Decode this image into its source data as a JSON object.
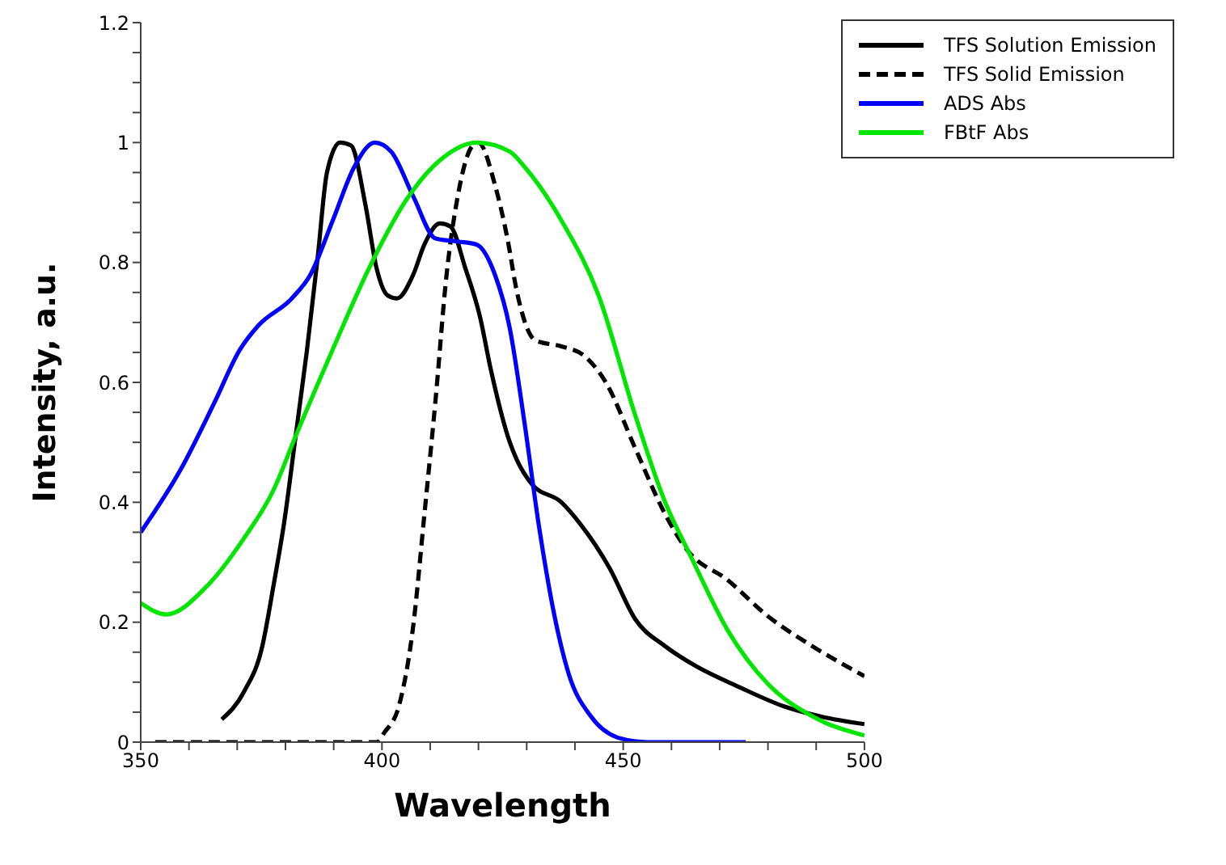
{
  "chart_data": {
    "type": "line",
    "xlabel": "Wavelength",
    "ylabel": "Intensity, a.u.",
    "xlim": [
      350,
      500
    ],
    "ylim": [
      0,
      1.2
    ],
    "xticks": [
      350,
      {
        "value": 360,
        "label": null
      },
      {
        "value": 370,
        "label": null
      },
      {
        "value": 380,
        "label": null
      },
      {
        "value": 390,
        "label": null
      },
      400,
      {
        "value": 410,
        "label": null
      },
      {
        "value": 420,
        "label": null
      },
      {
        "value": 430,
        "label": null
      },
      {
        "value": 440,
        "label": null
      },
      450,
      {
        "value": 460,
        "label": null
      },
      {
        "value": 470,
        "label": null
      },
      {
        "value": 480,
        "label": null
      },
      {
        "value": 490,
        "label": null
      },
      500
    ],
    "yticks": [
      0,
      {
        "value": 0.05,
        "label": null
      },
      {
        "value": 0.1,
        "label": null
      },
      {
        "value": 0.15,
        "label": null
      },
      0.2,
      {
        "value": 0.25,
        "label": null
      },
      {
        "value": 0.3,
        "label": null
      },
      {
        "value": 0.35,
        "label": null
      },
      0.4,
      {
        "value": 0.45,
        "label": null
      },
      {
        "value": 0.5,
        "label": null
      },
      {
        "value": 0.55,
        "label": null
      },
      0.6,
      {
        "value": 0.65,
        "label": null
      },
      {
        "value": 0.7,
        "label": null
      },
      {
        "value": 0.75,
        "label": null
      },
      0.8,
      {
        "value": 0.85,
        "label": null
      },
      {
        "value": 0.9,
        "label": null
      },
      {
        "value": 0.95,
        "label": null
      },
      1,
      {
        "value": 1.05,
        "label": null
      },
      {
        "value": 1.1,
        "label": null
      },
      {
        "value": 1.15,
        "label": null
      },
      1.2
    ],
    "grid": false,
    "legend": "top right",
    "marker": "none",
    "series": [
      {
        "name": "TFS Solution Emission",
        "color": "#000000",
        "line_style": "solid",
        "x": [
          366.8,
          371.4,
          375.2,
          377.5,
          379.8,
          382.1,
          384.4,
          386.7,
          388.6,
          391.3,
          393.6,
          396.6,
          398.9,
          401.2,
          403.1,
          406.5,
          408.8,
          412.0,
          414.2,
          417.3,
          420.3,
          422.6,
          426.5,
          428.0,
          431.1,
          437.2,
          441.0,
          447.2,
          452.5,
          458.7,
          464.8,
          474.0,
          483.2,
          490.8,
          500
        ],
        "values": [
          0.038,
          0.084,
          0.16,
          0.26,
          0.37,
          0.51,
          0.65,
          0.81,
          0.95,
          1.0,
          0.995,
          0.895,
          0.79,
          0.745,
          0.74,
          0.78,
          0.83,
          0.865,
          0.86,
          0.79,
          0.71,
          0.62,
          0.5,
          0.47,
          0.43,
          0.4,
          0.365,
          0.29,
          0.205,
          0.16,
          0.128,
          0.092,
          0.06,
          0.043,
          0.03
        ]
      },
      {
        "name": "TFS Solid Emission",
        "color": "#000000",
        "line_style": "dashed",
        "x": [
          353,
          380,
          398.9,
          400.5,
          403.5,
          406.5,
          408.8,
          411.1,
          413.4,
          415.7,
          418.8,
          420,
          423.4,
          426.0,
          428,
          431.8,
          437.2,
          441.8,
          446.4,
          452.5,
          458.7,
          463.3,
          471.7,
          480,
          489.2,
          500
        ],
        "values": [
          0,
          0,
          0,
          0.016,
          0.06,
          0.195,
          0.38,
          0.57,
          0.78,
          0.91,
          0.995,
          1.0,
          0.93,
          0.84,
          0.75,
          0.67,
          0.66,
          0.645,
          0.6,
          0.49,
          0.38,
          0.32,
          0.27,
          0.21,
          0.16,
          0.11
        ]
      },
      {
        "name": "ADS Abs",
        "color": "#0000ff",
        "line_style": "solid",
        "x": [
          350,
          358.3,
          365.2,
          370.6,
          374.4,
          381.3,
          385.2,
          389.8,
          394.3,
          398.5,
          401.9,
          406.5,
          411.1,
          415.7,
          419.6,
          423.4,
          426.5,
          429.5,
          432.6,
          435.7,
          438.7,
          443.3,
          449.5,
          455,
          475.4
        ],
        "values": [
          0.35,
          0.455,
          0.565,
          0.655,
          0.695,
          0.74,
          0.78,
          0.87,
          0.96,
          1.0,
          0.985,
          0.91,
          0.84,
          0.835,
          0.83,
          0.78,
          0.69,
          0.535,
          0.357,
          0.213,
          0.114,
          0.043,
          0.006,
          0,
          0
        ]
      },
      {
        "name": "FBtF Abs",
        "color": "#00e600",
        "line_style": "solid",
        "x": [
          350,
          355.3,
          363.7,
          371.4,
          377.5,
          382.1,
          389.8,
          397.3,
          405.1,
          412.7,
          419.6,
          426.5,
          429.5,
          437.2,
          444.9,
          452.5,
          458.7,
          464,
          471.7,
          480,
          489.2,
          500
        ],
        "values": [
          0.232,
          0.213,
          0.26,
          0.34,
          0.42,
          0.51,
          0.655,
          0.79,
          0.905,
          0.975,
          1.0,
          0.985,
          0.96,
          0.87,
          0.745,
          0.545,
          0.4,
          0.31,
          0.186,
          0.097,
          0.043,
          0.011
        ]
      }
    ]
  }
}
